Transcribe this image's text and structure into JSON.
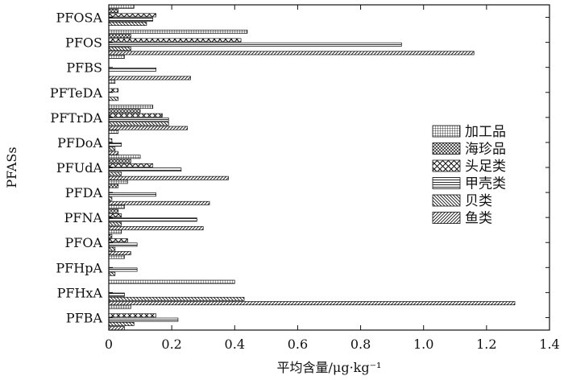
{
  "chart_data": {
    "type": "bar",
    "orientation": "horizontal",
    "categories": [
      "PFOSA",
      "PFOS",
      "PFBS",
      "PFTeDA",
      "PFTrDA",
      "PFDoA",
      "PFUdA",
      "PFDA",
      "PFNA",
      "PFOA",
      "PFHpA",
      "PFHxA",
      "PFBA"
    ],
    "series": [
      {
        "name": "加工品",
        "values": [
          0.08,
          0.44,
          0.05,
          0.02,
          0.14,
          0.03,
          0.1,
          0.06,
          0.05,
          0.04,
          0.05,
          0.4,
          0.07
        ]
      },
      {
        "name": "海珍品",
        "values": [
          0.03,
          0.07,
          0.0,
          0.0,
          0.1,
          0.0,
          0.07,
          0.03,
          0.03,
          0.01,
          0.0,
          0.0,
          0.0
        ]
      },
      {
        "name": "头足类",
        "values": [
          0.15,
          0.42,
          0.0,
          0.03,
          0.17,
          0.01,
          0.14,
          0.0,
          0.04,
          0.06,
          0.0,
          0.0,
          0.15
        ]
      },
      {
        "name": "甲壳类",
        "values": [
          0.14,
          0.93,
          0.15,
          0.0,
          0.19,
          0.04,
          0.23,
          0.15,
          0.28,
          0.09,
          0.09,
          0.05,
          0.22
        ]
      },
      {
        "name": "贝类",
        "values": [
          0.12,
          0.07,
          0.0,
          0.03,
          0.19,
          0.02,
          0.04,
          0.01,
          0.04,
          0.02,
          0.02,
          0.43,
          0.08
        ]
      },
      {
        "name": "鱼类",
        "values": [
          0.0,
          1.16,
          0.26,
          0.0,
          0.25,
          0.03,
          0.38,
          0.32,
          0.3,
          0.07,
          0.0,
          1.29,
          0.05
        ]
      }
    ],
    "xlabel": "平均含量/μg·kg⁻¹",
    "ylabel": "PFASs",
    "xlim": [
      0,
      1.4
    ],
    "xticks": [
      "0",
      "0.2",
      "0.4",
      "0.6",
      "0.8",
      "1.0",
      "1.2",
      "1.4"
    ],
    "grid": false,
    "legend_position": "right",
    "colors": {
      "bar_stroke": "#111111",
      "bar_fill": "#ffffff",
      "axis": "#111111"
    }
  }
}
